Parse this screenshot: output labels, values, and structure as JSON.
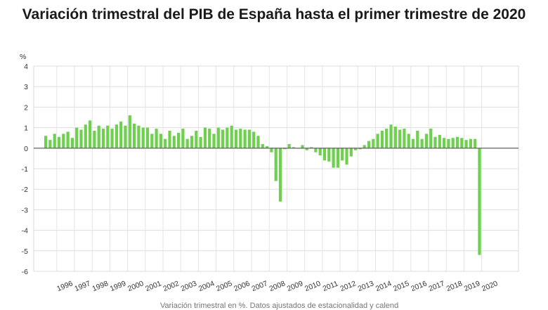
{
  "chart_data": {
    "type": "bar",
    "title": "Variación trimestral del PIB de España hasta el primer trimestre de 2020",
    "ylabel": "%",
    "xlabel": "",
    "ylim": [
      -6,
      4
    ],
    "yticks": [
      4,
      3,
      2,
      1,
      0,
      -1,
      -2,
      -3,
      -4,
      -5,
      -6
    ],
    "grid": true,
    "bar_color": "#6fcf4f",
    "first_quarter": "1995Q2",
    "year_labels": [
      "1996",
      "1997",
      "1998",
      "1999",
      "2000",
      "2001",
      "2002",
      "2003",
      "2004",
      "2005",
      "2006",
      "2007",
      "2008",
      "2009",
      "2010",
      "2011",
      "2012",
      "2013",
      "2014",
      "2015",
      "2016",
      "2017",
      "2018",
      "2019",
      "2020"
    ],
    "values": [
      0.6,
      0.4,
      0.7,
      0.55,
      0.7,
      0.8,
      0.5,
      1.0,
      0.9,
      1.15,
      1.35,
      0.85,
      1.1,
      0.95,
      1.1,
      0.95,
      1.15,
      1.3,
      1.1,
      1.6,
      1.2,
      1.1,
      1.0,
      1.0,
      0.7,
      0.95,
      0.7,
      0.45,
      0.85,
      0.6,
      0.75,
      0.95,
      0.45,
      0.6,
      0.85,
      0.55,
      1.0,
      0.95,
      0.7,
      1.0,
      0.9,
      1.0,
      1.1,
      0.9,
      0.95,
      0.9,
      0.9,
      0.8,
      0.6,
      0.2,
      0.1,
      -0.2,
      -1.6,
      -2.6,
      -0.05,
      0.2,
      0.05,
      0.0,
      0.15,
      -0.1,
      0.05,
      -0.2,
      -0.35,
      -0.6,
      -0.65,
      -0.95,
      -0.95,
      -0.6,
      -0.8,
      -0.4,
      -0.1,
      -0.05,
      0.15,
      0.35,
      0.45,
      0.7,
      0.85,
      0.95,
      1.15,
      1.05,
      0.9,
      0.95,
      0.7,
      0.45,
      0.85,
      0.45,
      0.7,
      0.95,
      0.55,
      0.65,
      0.5,
      0.45,
      0.5,
      0.55,
      0.5,
      0.4,
      0.45,
      0.45,
      -5.2
    ]
  },
  "footer_note": "Variación trimestral en %. Datos ajustados de estacionalidad y calendario"
}
